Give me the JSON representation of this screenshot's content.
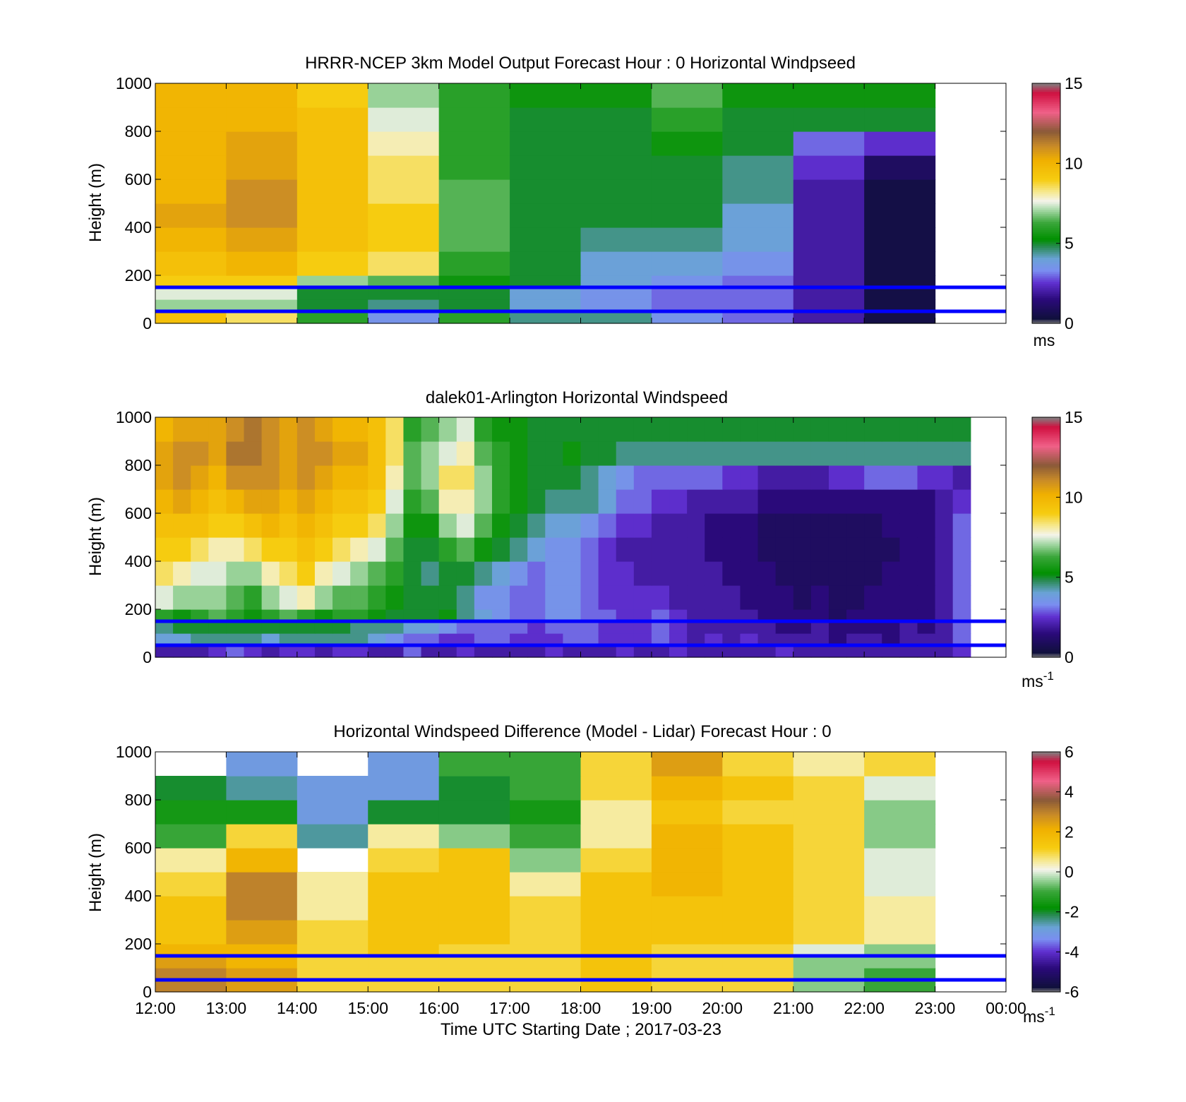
{
  "figure": {
    "xlabel": "Time UTC  Starting Date ; 2017-03-23",
    "x_tick_labels": [
      "12:00",
      "13:00",
      "14:00",
      "15:00",
      "16:00",
      "17:00",
      "18:00",
      "19:00",
      "20:00",
      "21:00",
      "22:00",
      "23:00",
      "00:00"
    ]
  },
  "colors": {
    "reference_lines": "#0000ff"
  },
  "chart_data": [
    {
      "type": "heatmap",
      "title": "HRRR-NCEP 3km Model Output   Forecast Hour : 0 Horizontal Windpseed",
      "ylabel": "Height (m)",
      "ylim": [
        0,
        1000
      ],
      "y_ticks": [
        "0",
        "200",
        "400",
        "600",
        "800",
        "1000"
      ],
      "colorbar": {
        "min": 0,
        "max": 15,
        "ticks": [
          "0",
          "5",
          "10",
          "15"
        ],
        "unit": "ms",
        "unit_superscript": ""
      },
      "reference_lines_m": [
        150,
        50
      ],
      "x_hours_utc": [
        "12:00",
        "13:00",
        "14:00",
        "15:00",
        "16:00",
        "17:00",
        "18:00",
        "19:00",
        "20:00",
        "21:00",
        "22:00",
        "23:00"
      ],
      "height_bins_m": [
        0,
        50,
        100,
        150,
        200,
        300,
        400,
        500,
        600,
        700,
        800,
        900,
        1000
      ],
      "z": [
        [
          9.5,
          8.5,
          6.0,
          3.5,
          6.0,
          4.5,
          4.5,
          3.5,
          3.0,
          2.0,
          0.5,
          null
        ],
        [
          7.0,
          7.0,
          5.0,
          4.5,
          5.0,
          4.0,
          3.5,
          3.0,
          3.0,
          2.0,
          0.5,
          null
        ],
        [
          7.5,
          7.5,
          5.0,
          5.0,
          5.0,
          4.0,
          3.5,
          3.0,
          3.0,
          2.0,
          0.5,
          null
        ],
        [
          9.0,
          9.0,
          7.0,
          6.5,
          5.5,
          5.0,
          4.0,
          3.5,
          3.0,
          2.0,
          0.5,
          null
        ],
        [
          9.5,
          10.0,
          9.0,
          8.5,
          6.0,
          5.0,
          4.0,
          4.0,
          3.5,
          2.0,
          0.5,
          null
        ],
        [
          10.0,
          10.5,
          9.5,
          9.0,
          6.5,
          5.0,
          4.5,
          4.5,
          4.0,
          2.0,
          0.5,
          null
        ],
        [
          10.5,
          11.0,
          9.5,
          9.0,
          6.5,
          5.0,
          5.0,
          5.0,
          4.0,
          2.0,
          0.5,
          null
        ],
        [
          10.0,
          11.0,
          9.5,
          8.5,
          6.5,
          5.0,
          5.0,
          5.0,
          4.5,
          2.0,
          0.5,
          null
        ],
        [
          10.0,
          10.5,
          9.5,
          8.5,
          6.0,
          5.0,
          5.0,
          5.0,
          4.5,
          2.5,
          1.0,
          null
        ],
        [
          10.0,
          10.5,
          9.5,
          8.0,
          6.0,
          5.0,
          5.0,
          5.5,
          5.0,
          3.0,
          2.5,
          null
        ],
        [
          10.0,
          10.0,
          9.5,
          7.5,
          6.0,
          5.0,
          5.0,
          6.0,
          5.0,
          5.0,
          5.0,
          null
        ],
        [
          10.0,
          10.0,
          9.0,
          7.0,
          6.0,
          5.5,
          5.5,
          6.5,
          5.5,
          5.5,
          5.5,
          null
        ]
      ]
    },
    {
      "type": "heatmap",
      "title": "dalek01-Arlington  Horizontal Windspeed",
      "ylabel": "Height (m)",
      "ylim": [
        0,
        1000
      ],
      "y_ticks": [
        "0",
        "200",
        "400",
        "600",
        "800",
        "1000"
      ],
      "colorbar": {
        "min": 0,
        "max": 15,
        "ticks": [
          "0",
          "5",
          "10",
          "15"
        ],
        "unit": "ms",
        "unit_superscript": "-1"
      },
      "reference_lines_m": [
        150,
        50
      ],
      "x_start_hour": 12,
      "x_step_hours": 0.25,
      "height_bins_m": [
        0,
        50,
        100,
        150,
        200,
        300,
        400,
        500,
        600,
        700,
        800,
        900,
        1000
      ],
      "z": [
        [
          2.0,
          2.0,
          2.0,
          2.5,
          3.0,
          2.5,
          2.0,
          2.5,
          2.5,
          2.0,
          2.5,
          2.5,
          2.0,
          2.0,
          3.0,
          2.0,
          2.0,
          2.5,
          2.0,
          2.0,
          2.0,
          2.0,
          2.5,
          2.0,
          2.0,
          2.0,
          2.5,
          2.0,
          2.0,
          2.5,
          2.0,
          2.0,
          2.0,
          2.0,
          2.0,
          2.5,
          2.0,
          2.0,
          2.0,
          2.0,
          2.0,
          2.0,
          2.0,
          2.0,
          2.0,
          2.5
        ],
        [
          4.0,
          4.0,
          4.5,
          4.5,
          4.5,
          4.5,
          4.0,
          4.5,
          4.5,
          4.5,
          4.5,
          4.5,
          4.0,
          3.5,
          3.0,
          3.0,
          2.5,
          2.5,
          3.0,
          3.0,
          2.5,
          2.5,
          2.5,
          3.0,
          3.0,
          2.5,
          2.5,
          2.5,
          3.0,
          2.5,
          2.0,
          2.5,
          2.0,
          2.5,
          2.0,
          2.0,
          2.0,
          2.0,
          1.5,
          2.0,
          2.0,
          1.5,
          2.0,
          2.0,
          2.0,
          3.0
        ],
        [
          4.5,
          5.0,
          5.0,
          5.0,
          5.0,
          5.0,
          5.0,
          5.0,
          5.0,
          5.0,
          5.0,
          4.5,
          4.5,
          4.5,
          4.0,
          4.0,
          3.5,
          3.0,
          3.0,
          3.0,
          3.0,
          2.5,
          3.0,
          3.0,
          3.0,
          2.5,
          2.5,
          2.5,
          3.0,
          2.5,
          2.0,
          2.0,
          2.0,
          2.0,
          2.0,
          1.5,
          1.5,
          2.0,
          1.5,
          1.5,
          1.5,
          1.5,
          2.0,
          1.5,
          2.0,
          3.0
        ],
        [
          6.0,
          5.5,
          6.0,
          6.5,
          6.0,
          5.5,
          6.0,
          6.5,
          6.0,
          5.5,
          6.0,
          6.0,
          5.5,
          5.0,
          5.0,
          5.0,
          5.5,
          4.5,
          4.0,
          3.5,
          3.0,
          3.0,
          3.5,
          3.5,
          3.0,
          3.0,
          2.5,
          2.5,
          3.0,
          2.5,
          2.0,
          2.0,
          2.0,
          2.0,
          1.5,
          1.5,
          1.5,
          1.5,
          1.0,
          1.5,
          1.5,
          1.5,
          1.5,
          1.5,
          2.0,
          3.0
        ],
        [
          7.5,
          7.0,
          7.0,
          7.0,
          6.5,
          6.0,
          7.0,
          7.5,
          8.0,
          7.0,
          6.5,
          6.5,
          6.0,
          5.5,
          5.0,
          5.0,
          5.0,
          4.5,
          3.5,
          3.5,
          3.0,
          3.0,
          3.5,
          3.5,
          3.0,
          2.5,
          2.5,
          2.5,
          2.5,
          2.0,
          2.0,
          2.0,
          2.0,
          1.5,
          1.5,
          1.5,
          1.0,
          1.5,
          1.0,
          1.0,
          1.5,
          1.5,
          1.5,
          1.5,
          2.0,
          3.0
        ],
        [
          8.5,
          8.0,
          7.5,
          7.5,
          7.0,
          7.0,
          8.0,
          8.5,
          9.0,
          8.0,
          7.5,
          7.0,
          6.5,
          6.0,
          5.0,
          4.5,
          5.0,
          5.0,
          4.5,
          4.0,
          3.5,
          3.0,
          3.5,
          3.5,
          3.0,
          2.5,
          2.5,
          2.0,
          2.0,
          2.0,
          2.0,
          2.0,
          1.5,
          1.5,
          1.5,
          1.0,
          1.0,
          1.0,
          1.0,
          1.0,
          1.0,
          1.5,
          1.5,
          1.5,
          2.0,
          3.0
        ],
        [
          9.0,
          9.0,
          8.5,
          8.0,
          8.0,
          8.5,
          9.0,
          9.0,
          9.5,
          9.0,
          8.5,
          8.0,
          7.5,
          6.5,
          5.0,
          5.0,
          6.0,
          6.5,
          5.5,
          5.0,
          4.5,
          4.0,
          3.5,
          3.5,
          3.0,
          2.5,
          2.0,
          2.0,
          2.0,
          2.0,
          2.0,
          1.5,
          1.5,
          1.5,
          1.0,
          1.0,
          1.0,
          1.0,
          1.0,
          1.0,
          1.0,
          1.0,
          1.5,
          1.5,
          2.0,
          3.0
        ],
        [
          9.5,
          9.5,
          9.5,
          9.0,
          9.0,
          9.5,
          10.0,
          9.5,
          10.0,
          9.5,
          9.0,
          9.0,
          8.5,
          7.0,
          5.5,
          5.5,
          7.0,
          7.5,
          6.5,
          5.5,
          5.0,
          4.5,
          4.0,
          4.0,
          3.5,
          3.0,
          2.5,
          2.5,
          2.0,
          2.0,
          2.0,
          1.5,
          1.5,
          1.5,
          1.0,
          1.0,
          1.0,
          1.0,
          1.0,
          1.0,
          1.0,
          1.5,
          1.5,
          1.5,
          2.0,
          3.0
        ],
        [
          10.0,
          10.5,
          10.0,
          9.5,
          10.0,
          10.5,
          10.5,
          10.0,
          10.5,
          10.0,
          9.5,
          9.5,
          9.0,
          7.5,
          6.0,
          6.5,
          8.0,
          8.0,
          7.0,
          6.0,
          5.5,
          5.0,
          4.5,
          4.5,
          4.5,
          4.0,
          3.0,
          3.0,
          2.5,
          2.5,
          2.0,
          2.0,
          2.0,
          2.0,
          1.5,
          1.5,
          1.5,
          1.5,
          1.5,
          1.5,
          1.5,
          1.5,
          1.5,
          1.5,
          2.0,
          2.5
        ],
        [
          10.5,
          11.0,
          10.5,
          10.0,
          11.0,
          11.0,
          11.0,
          10.5,
          11.0,
          10.5,
          10.0,
          10.0,
          9.5,
          8.0,
          6.5,
          7.0,
          8.5,
          8.5,
          7.0,
          6.0,
          5.5,
          5.0,
          5.0,
          5.0,
          4.5,
          4.0,
          3.5,
          3.0,
          3.0,
          3.0,
          3.0,
          3.0,
          2.5,
          2.5,
          2.0,
          2.0,
          2.0,
          2.0,
          2.5,
          2.5,
          3.0,
          3.0,
          3.0,
          2.5,
          2.5,
          2.0
        ],
        [
          10.5,
          11.0,
          11.0,
          10.5,
          11.5,
          11.5,
          11.0,
          10.5,
          11.0,
          11.0,
          10.5,
          10.5,
          9.5,
          8.5,
          6.5,
          7.0,
          7.5,
          8.0,
          6.5,
          6.0,
          5.5,
          5.0,
          5.0,
          5.5,
          5.0,
          5.0,
          4.5,
          4.5,
          4.5,
          4.5,
          4.5,
          4.5,
          4.5,
          4.5,
          4.5,
          4.5,
          4.5,
          4.5,
          4.5,
          4.5,
          4.5,
          4.5,
          4.5,
          4.5,
          4.5,
          4.5
        ],
        [
          10.0,
          10.5,
          10.5,
          10.5,
          11.0,
          11.5,
          11.0,
          10.5,
          11.0,
          10.5,
          10.0,
          10.0,
          9.5,
          8.5,
          6.0,
          6.5,
          7.0,
          7.5,
          6.0,
          5.5,
          5.5,
          5.0,
          5.0,
          5.0,
          5.0,
          5.0,
          5.0,
          5.0,
          5.0,
          5.0,
          5.0,
          5.0,
          5.0,
          5.0,
          5.0,
          5.0,
          5.0,
          5.0,
          5.0,
          5.0,
          5.0,
          5.0,
          5.0,
          5.0,
          5.0,
          5.0
        ]
      ]
    },
    {
      "type": "heatmap",
      "title": "Horizontal Windspeed Difference (Model - Lidar) Forecast Hour : 0",
      "ylabel": "Height (m)",
      "ylim": [
        0,
        1000
      ],
      "y_ticks": [
        "0",
        "200",
        "400",
        "600",
        "800",
        "1000"
      ],
      "colorbar": {
        "min": -6,
        "max": 6,
        "ticks": [
          "-6",
          "-4",
          "-2",
          "0",
          "2",
          "4",
          "6"
        ],
        "unit": "ms",
        "unit_superscript": "-1"
      },
      "reference_lines_m": [
        150,
        50
      ],
      "x_hours_utc": [
        "12:00",
        "13:00",
        "14:00",
        "15:00",
        "16:00",
        "17:00",
        "18:00",
        "19:00",
        "20:00",
        "21:00",
        "22:00",
        "23:00"
      ],
      "height_bins_m": [
        0,
        50,
        100,
        150,
        200,
        300,
        400,
        500,
        600,
        700,
        800,
        900,
        1000
      ],
      "z": [
        [
          3.0,
          2.5,
          1.0,
          1.0,
          1.0,
          1.0,
          1.5,
          1.0,
          1.0,
          -0.5,
          -1.0,
          null
        ],
        [
          3.0,
          2.5,
          1.0,
          1.0,
          1.0,
          1.0,
          1.5,
          1.0,
          1.0,
          -0.5,
          -1.0,
          null
        ],
        [
          2.5,
          2.0,
          1.0,
          1.0,
          1.0,
          1.0,
          1.5,
          1.0,
          1.0,
          -0.5,
          -0.5,
          null
        ],
        [
          2.0,
          2.0,
          1.0,
          1.5,
          1.0,
          1.0,
          1.5,
          1.0,
          1.0,
          0.0,
          -0.5,
          null
        ],
        [
          1.5,
          2.5,
          1.0,
          1.5,
          1.5,
          1.0,
          1.5,
          1.5,
          1.5,
          1.0,
          0.5,
          null
        ],
        [
          1.5,
          3.0,
          0.5,
          1.5,
          1.5,
          1.0,
          1.5,
          1.5,
          1.5,
          1.0,
          0.5,
          null
        ],
        [
          1.0,
          3.0,
          0.5,
          1.5,
          1.5,
          0.5,
          1.5,
          2.0,
          1.5,
          1.0,
          0.0,
          null
        ],
        [
          0.5,
          2.0,
          null,
          1.0,
          1.5,
          -0.5,
          1.0,
          2.0,
          1.5,
          1.0,
          0.0,
          null
        ],
        [
          -1.0,
          1.0,
          -2.5,
          0.5,
          -0.5,
          -1.0,
          0.5,
          2.0,
          1.5,
          1.0,
          -0.5,
          null
        ],
        [
          -1.5,
          -1.5,
          -3.0,
          -2.0,
          -2.0,
          -1.5,
          0.5,
          1.5,
          1.0,
          1.0,
          -0.5,
          null
        ],
        [
          -2.0,
          -2.5,
          -3.0,
          -3.0,
          -2.0,
          -1.0,
          1.0,
          2.0,
          1.5,
          1.0,
          0.0,
          null
        ],
        [
          null,
          -3.0,
          null,
          -3.0,
          -1.0,
          -1.0,
          1.0,
          2.5,
          1.0,
          0.5,
          1.0,
          null
        ]
      ]
    }
  ]
}
